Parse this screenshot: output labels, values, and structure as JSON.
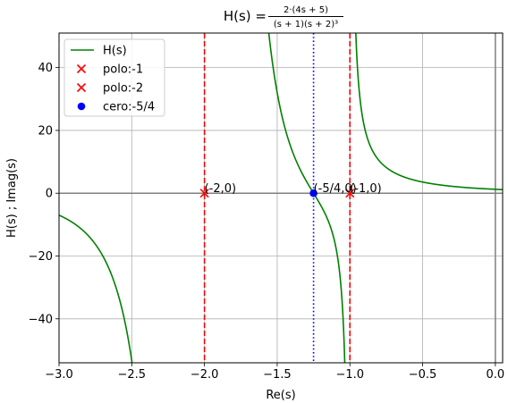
{
  "chart_data": {
    "type": "line",
    "title": {
      "prefix": "H(s) = ",
      "numerator": "2·(4s + 5)",
      "denominator": "(s + 1)(s + 2)³"
    },
    "xlabel": "Re(s)",
    "ylabel": "H(s) ; Imag(s)",
    "xlim": [
      -3.0,
      0.05
    ],
    "ylim": [
      -54,
      51
    ],
    "xticks": [
      -3.0,
      -2.5,
      -2.0,
      -1.5,
      -1.0,
      -0.5,
      0.0
    ],
    "xtick_labels": [
      "−3.0",
      "−2.5",
      "−2.0",
      "−1.5",
      "−1.0",
      "−0.5",
      "0.0"
    ],
    "yticks": [
      -40,
      -20,
      0,
      20,
      40
    ],
    "ytick_labels": [
      "−40",
      "−20",
      "0",
      "20",
      "40"
    ],
    "grid": true,
    "legend_position": "top-left",
    "series": [
      {
        "name": "H(s)",
        "kind": "line",
        "color": "#008000",
        "formula": "2*(4s+5)/((s+1)(s+2)^3)"
      },
      {
        "name": "polo:-1",
        "kind": "marker",
        "marker": "x",
        "color": "#ff0000",
        "x": -1,
        "y": 0
      },
      {
        "name": "polo:-2",
        "kind": "marker",
        "marker": "x",
        "color": "#ff0000",
        "x": -2,
        "y": 0
      },
      {
        "name": "cero:-5/4",
        "kind": "marker",
        "marker": "o",
        "color": "#0000ff",
        "x": -1.25,
        "y": 0
      }
    ],
    "vertical_lines": [
      {
        "x": -2,
        "style": "dashed",
        "color": "#ff0000"
      },
      {
        "x": -1,
        "style": "dashed",
        "color": "#ff0000"
      },
      {
        "x": -1.25,
        "style": "dotted",
        "color": "#0000ff"
      }
    ],
    "annotations": [
      {
        "text": "(-2,0)",
        "x": -2,
        "y": 0
      },
      {
        "text": "(-1,0)",
        "x": -1,
        "y": 0
      },
      {
        "text": "(-5/4,0)",
        "x": -1.25,
        "y": 0
      }
    ]
  }
}
